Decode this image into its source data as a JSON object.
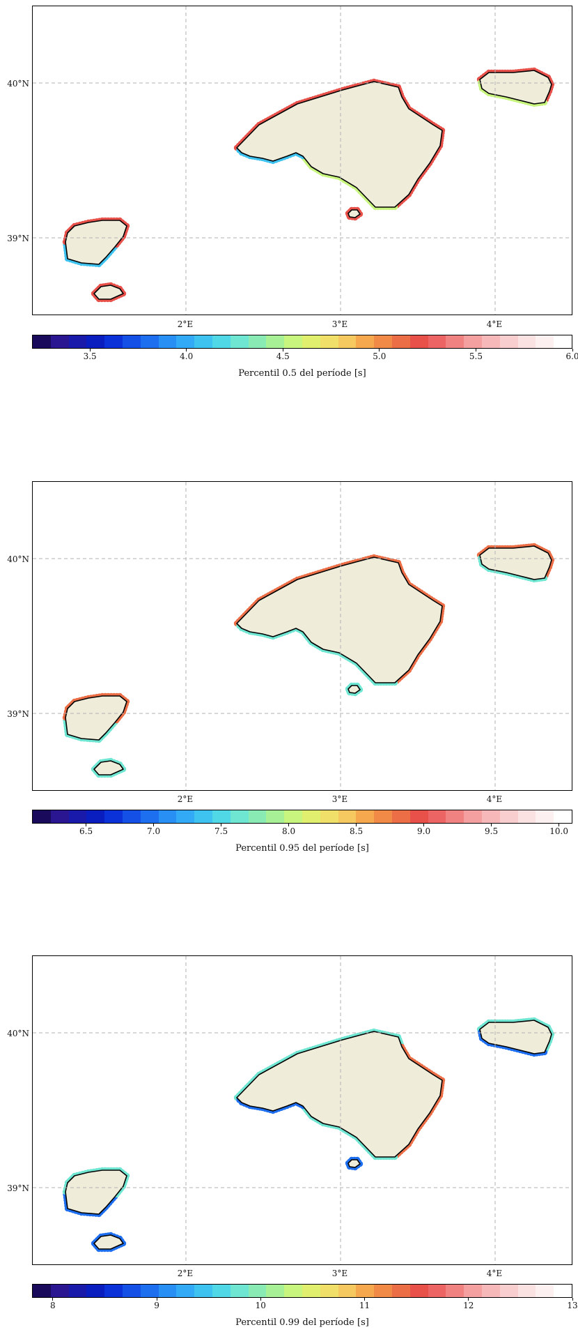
{
  "axes": {
    "lon_labels": [
      "2°E",
      "3°E",
      "4°E"
    ],
    "lat_labels": [
      "40°N",
      "39°N"
    ]
  },
  "colors": {
    "land": "#efecda",
    "coast": "#000000",
    "grid": "#b0b0b0",
    "colormap": [
      "#1a0a5c",
      "#2a1690",
      "#1a1aaa",
      "#0a1ec0",
      "#0a32d8",
      "#1450e6",
      "#1e6ef0",
      "#2890f5",
      "#32aaf5",
      "#3ec2f0",
      "#50d8e6",
      "#6ee6d2",
      "#8aeab4",
      "#a8f096",
      "#c8f57e",
      "#e0f06e",
      "#f0e06a",
      "#f5c860",
      "#f5a84e",
      "#f08a46",
      "#ec6e46",
      "#e8504a",
      "#ec6464",
      "#f08282",
      "#f4a0a0",
      "#f6b8b8",
      "#f8cece",
      "#fae2e2",
      "#fcf0f0",
      "#ffffff"
    ]
  },
  "panels": [
    {
      "colorbar": {
        "label": "Percentil 0.5 del període [s]",
        "ticks": [
          "3.5",
          "4.0",
          "4.5",
          "5.0",
          "5.5",
          "6.0"
        ],
        "tick_values": [
          3.5,
          4.0,
          4.5,
          5.0,
          5.5,
          6.0
        ],
        "vmin": 3.2,
        "vmax": 6.0
      },
      "coast_colors": {
        "mallorca_north": "#e8504a",
        "mallorca_south_west": "#3ec2f0",
        "mallorca_south": "#c8f57e",
        "mallorca_east": "#e8504a",
        "menorca_north": "#e8504a",
        "menorca_south": "#c8f57e",
        "ibiza_west": "#3ec2f0",
        "ibiza_east": "#e8504a",
        "formentera": "#e8504a",
        "cabrera": "#e8504a"
      }
    },
    {
      "colorbar": {
        "label": "Percentil 0.95 del període [s]",
        "ticks": [
          "6.5",
          "7.0",
          "7.5",
          "8.0",
          "8.5",
          "9.0",
          "9.5",
          "10.0"
        ],
        "tick_values": [
          6.5,
          7.0,
          7.5,
          8.0,
          8.5,
          9.0,
          9.5,
          10.0
        ],
        "vmin": 6.1,
        "vmax": 10.1
      },
      "coast_colors": {
        "mallorca_north": "#ec6e46",
        "mallorca_south_west": "#6ee6d2",
        "mallorca_south": "#6ee6d2",
        "mallorca_east": "#ec6e46",
        "menorca_north": "#ec6e46",
        "menorca_south": "#6ee6d2",
        "ibiza_west": "#6ee6d2",
        "ibiza_east": "#ec6e46",
        "formentera": "#6ee6d2",
        "cabrera": "#6ee6d2"
      }
    },
    {
      "colorbar": {
        "label": "Percentil 0.99 del període [s]",
        "ticks": [
          "8",
          "9",
          "10",
          "11",
          "12",
          "13"
        ],
        "tick_values": [
          8,
          9,
          10,
          11,
          12,
          13
        ],
        "vmin": 7.8,
        "vmax": 13.0
      },
      "coast_colors": {
        "mallorca_north": "#6ee6d2",
        "mallorca_south_west": "#1e6ef0",
        "mallorca_south": "#6ee6d2",
        "mallorca_east": "#ec6e46",
        "menorca_north": "#6ee6d2",
        "menorca_south": "#1e6ef0",
        "ibiza_west": "#1e6ef0",
        "ibiza_east": "#6ee6d2",
        "formentera": "#1e6ef0",
        "cabrera": "#1e6ef0"
      }
    }
  ]
}
